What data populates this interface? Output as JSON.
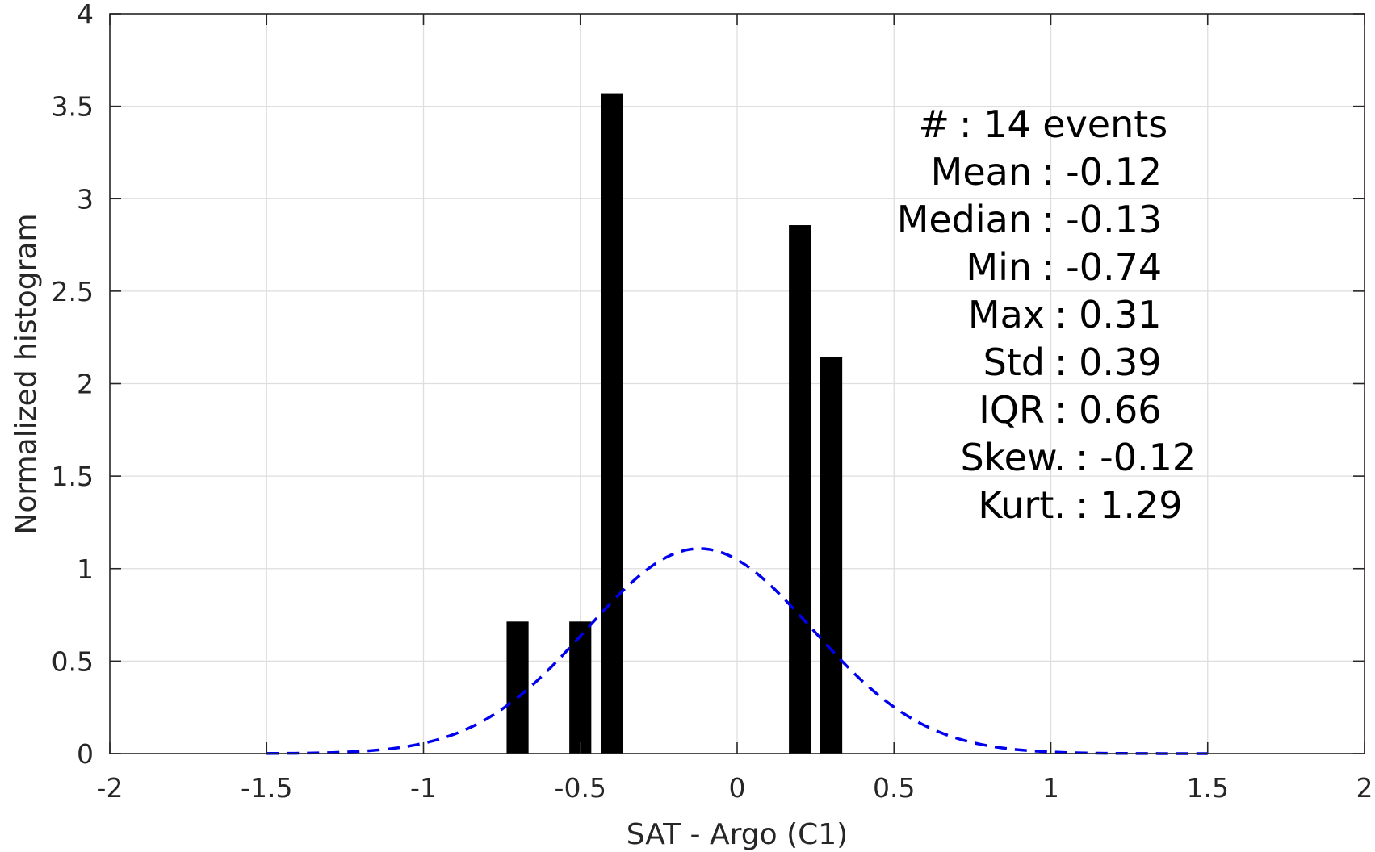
{
  "chart_data": {
    "type": "bar",
    "xlabel": "SAT - Argo (C1)",
    "ylabel": "Normalized histogram",
    "xlim": [
      -2,
      2
    ],
    "ylim": [
      0,
      4
    ],
    "xticks": [
      -2,
      -1.5,
      -1,
      -0.5,
      0,
      0.5,
      1,
      1.5,
      2
    ],
    "xtick_labels": [
      "-2",
      "-1.5",
      "-1",
      "-0.5",
      "0",
      "0.5",
      "1",
      "1.5",
      "2"
    ],
    "yticks": [
      0,
      0.5,
      1,
      1.5,
      2,
      2.5,
      3,
      3.5,
      4
    ],
    "ytick_labels": [
      "0",
      "0.5",
      "1",
      "1.5",
      "2",
      "2.5",
      "3",
      "3.5",
      "4"
    ],
    "grid": true,
    "bar_width": 0.07,
    "series": [
      {
        "type": "bar",
        "color": "#000000",
        "x": [
          -0.7,
          -0.5,
          -0.4,
          0.2,
          0.3
        ],
        "values": [
          0.714,
          0.714,
          3.57,
          2.857,
          2.143
        ]
      },
      {
        "type": "line",
        "style": "dashed",
        "color": "#0000ee",
        "distribution": "normal",
        "mean": -0.12,
        "std": 0.36,
        "x_range": [
          -1.5,
          1.5
        ]
      }
    ],
    "annotations": [
      "#  : 14 events",
      "Mean : -0.12",
      "Median : -0.13",
      "Min : -0.74",
      "Max : 0.31",
      "Std : 0.39",
      "IQR : 0.66",
      "Skew. : -0.12",
      "Kurt. : 1.29"
    ]
  }
}
